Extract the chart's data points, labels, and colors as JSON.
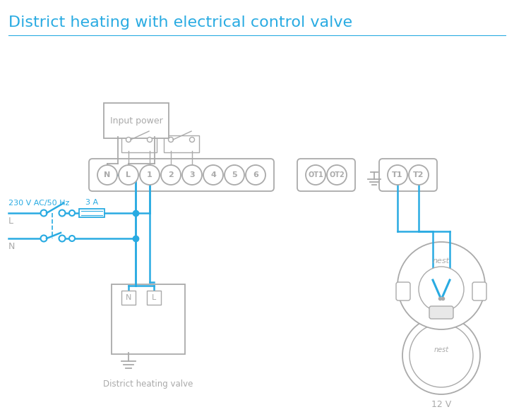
{
  "title": "District heating with electrical control valve",
  "title_color": "#29abe2",
  "bg_color": "#ffffff",
  "cyan": "#29abe2",
  "gray": "#aaaaaa",
  "input_power_label": "Input power",
  "dist_valve_label": "District heating valve",
  "twelve_v_label": "12 V",
  "voltage_label": "230 V AC/50 Hz",
  "fuse_label": "3 A",
  "L_label": "L",
  "N_label": "N",
  "terminal_labels": [
    "N",
    "L",
    "1",
    "2",
    "3",
    "4",
    "5",
    "6"
  ],
  "ot_labels": [
    "OT1",
    "OT2"
  ],
  "t_labels": [
    "T1",
    "T2"
  ],
  "fig_w": 7.28,
  "fig_h": 5.94,
  "dpi": 100
}
